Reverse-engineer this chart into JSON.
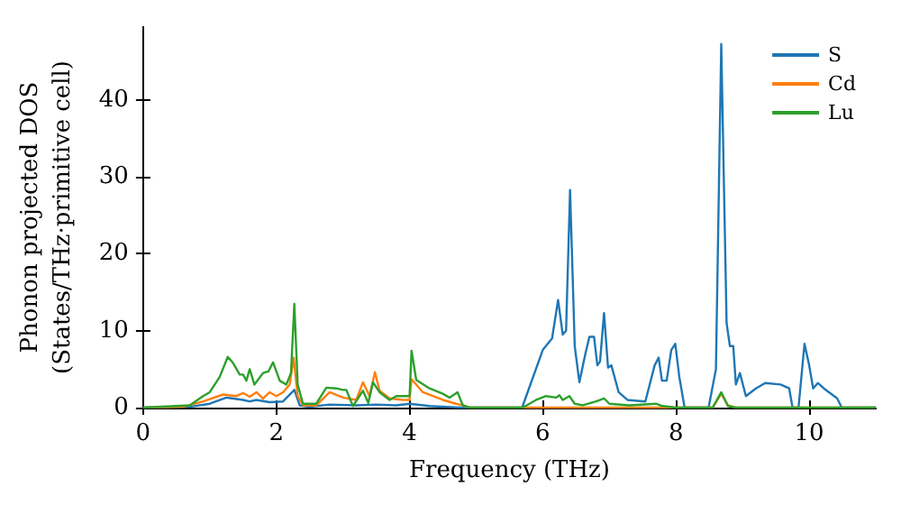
{
  "chart_data": {
    "type": "line",
    "xlabel": "Frequency (THz)",
    "ylabel": "Phonon projected DOS\n(States/THz·primitive cell)",
    "xlim": [
      0,
      11
    ],
    "xticks": [
      0,
      2,
      4,
      6,
      8,
      10
    ],
    "ylim": [
      0,
      49.5
    ],
    "yticks": [
      0,
      10,
      20,
      30,
      40
    ],
    "grid": false,
    "legend": "top right",
    "marker": "none",
    "line_style": "solid",
    "series": [
      {
        "name": "S",
        "color": "#1f77b4",
        "x": [
          0,
          0.7,
          1.0,
          1.25,
          1.5,
          1.6,
          1.7,
          1.9,
          2.1,
          2.27,
          2.35,
          2.5,
          2.8,
          3.2,
          3.5,
          3.8,
          4.0,
          4.3,
          4.8,
          5.69,
          6.0,
          6.14,
          6.23,
          6.3,
          6.35,
          6.41,
          6.48,
          6.55,
          6.64,
          6.7,
          6.77,
          6.82,
          6.86,
          6.92,
          6.98,
          7.03,
          7.14,
          7.27,
          7.54,
          7.68,
          7.74,
          7.79,
          7.86,
          7.93,
          7.99,
          8.05,
          8.13,
          8.49,
          8.6,
          8.68,
          8.76,
          8.81,
          8.86,
          8.9,
          8.96,
          9.05,
          9.2,
          9.34,
          9.57,
          9.7,
          9.75,
          9.84,
          9.93,
          10.0,
          10.06,
          10.13,
          10.22,
          10.42,
          10.49,
          11
        ],
        "values": [
          0,
          0.1,
          0.5,
          1.3,
          1.0,
          0.8,
          1.0,
          0.7,
          0.8,
          2.3,
          0.3,
          0.1,
          0.4,
          0.3,
          0.4,
          0.3,
          0.5,
          0.2,
          0,
          0,
          7.5,
          9,
          14,
          9.5,
          10,
          28.3,
          8,
          3.3,
          7,
          9.2,
          9.2,
          5.5,
          6,
          12.3,
          5.2,
          5.5,
          2,
          1,
          0.8,
          5.5,
          6.5,
          3.5,
          3.5,
          7.5,
          8.3,
          4,
          0,
          0,
          5,
          47.3,
          11,
          8,
          8,
          3,
          4.5,
          1.5,
          2.5,
          3.2,
          3,
          2.5,
          0,
          0,
          8.3,
          5.5,
          2.5,
          3.2,
          2.5,
          1.2,
          0,
          0
        ]
      },
      {
        "name": "Cd",
        "color": "#ff7f0e",
        "x": [
          0,
          0.6,
          0.9,
          1.2,
          1.4,
          1.5,
          1.6,
          1.7,
          1.8,
          1.9,
          2.0,
          2.1,
          2.2,
          2.26,
          2.32,
          2.4,
          2.6,
          2.8,
          3.0,
          3.2,
          3.3,
          3.4,
          3.48,
          3.55,
          3.7,
          3.9,
          4.0,
          4.03,
          4.2,
          4.5,
          4.7,
          4.8,
          4.9,
          8.55,
          8.68,
          8.78,
          8.9,
          11
        ],
        "values": [
          0,
          0.1,
          0.8,
          1.7,
          1.5,
          1.9,
          1.4,
          2.0,
          1.2,
          2.0,
          1.5,
          2.0,
          3.0,
          6.5,
          1.5,
          0.3,
          0.3,
          2.0,
          1.3,
          1.0,
          3.3,
          1.5,
          4.6,
          2.2,
          1.2,
          1.0,
          1.0,
          3.7,
          2.0,
          1.0,
          0.5,
          0.3,
          0,
          0,
          1.8,
          0.3,
          0,
          0
        ]
      },
      {
        "name": "Lu",
        "color": "#2ca02c",
        "x": [
          0,
          0.7,
          0.9,
          1.0,
          1.15,
          1.27,
          1.35,
          1.45,
          1.5,
          1.55,
          1.6,
          1.67,
          1.8,
          1.88,
          1.95,
          2.05,
          2.15,
          2.22,
          2.27,
          2.32,
          2.4,
          2.6,
          2.75,
          2.9,
          3.0,
          3.05,
          3.15,
          3.3,
          3.38,
          3.45,
          3.55,
          3.7,
          3.8,
          4.0,
          4.03,
          4.1,
          4.3,
          4.5,
          4.6,
          4.72,
          4.8,
          4.9,
          5.7,
          5.9,
          6.05,
          6.2,
          6.25,
          6.3,
          6.4,
          6.48,
          6.6,
          6.8,
          6.92,
          7.0,
          7.3,
          7.7,
          7.8,
          8.0,
          8.55,
          8.68,
          8.78,
          8.9,
          11
        ],
        "values": [
          0,
          0.3,
          1.5,
          2.0,
          4.0,
          6.6,
          5.8,
          4.3,
          4.3,
          3.5,
          5.0,
          3.0,
          4.5,
          4.7,
          5.9,
          3.5,
          3.0,
          4.5,
          13.5,
          3,
          0.5,
          0.5,
          2.6,
          2.5,
          2.3,
          2.3,
          0.2,
          2.2,
          0.6,
          3.3,
          2.0,
          1.0,
          1.5,
          1.5,
          7.4,
          3.6,
          2.5,
          1.8,
          1.3,
          2.0,
          0.3,
          0,
          0,
          1.0,
          1.5,
          1.3,
          1.6,
          1.0,
          1.5,
          0.5,
          0.3,
          0.8,
          1.2,
          0.5,
          0.3,
          0.5,
          0.2,
          0,
          0,
          2.0,
          0.2,
          0,
          0
        ]
      }
    ]
  }
}
